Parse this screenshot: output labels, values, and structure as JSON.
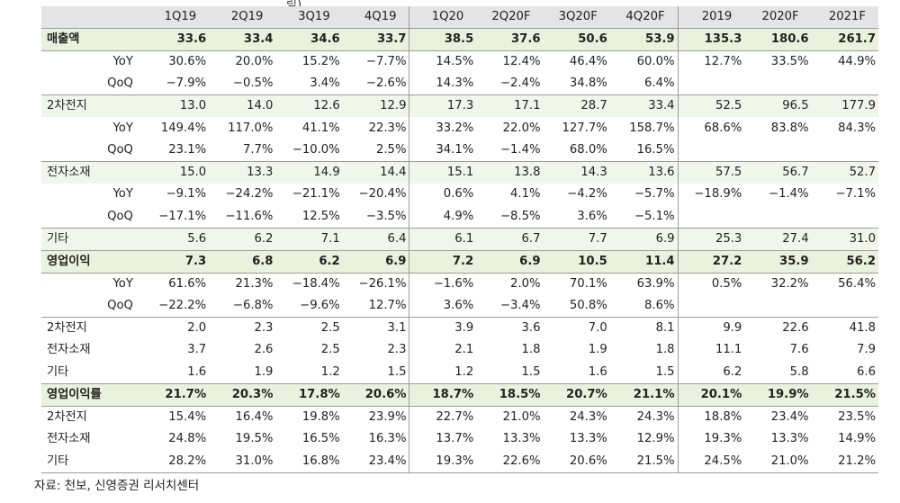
{
  "header": {
    "clipped_title": "림)",
    "columns": [
      "1Q19",
      "2Q19",
      "3Q19",
      "4Q19",
      "1Q20",
      "2Q20F",
      "3Q20F",
      "4Q20F",
      "2019",
      "2020F",
      "2021F"
    ]
  },
  "rows": [
    {
      "label": "매출액",
      "style": "major",
      "values": [
        "33.6",
        "33.4",
        "34.6",
        "33.7",
        "38.5",
        "37.6",
        "50.6",
        "53.9",
        "135.3",
        "180.6",
        "261.7"
      ]
    },
    {
      "label": "YoY",
      "style": "sub",
      "values": [
        "30.6%",
        "20.0%",
        "15.2%",
        "−7.7%",
        "14.5%",
        "12.4%",
        "46.4%",
        "60.0%",
        "12.7%",
        "33.5%",
        "44.9%"
      ]
    },
    {
      "label": "QoQ",
      "style": "sub",
      "values": [
        "−7.9%",
        "−0.5%",
        "3.4%",
        "−2.6%",
        "14.3%",
        "−2.4%",
        "34.8%",
        "6.4%",
        "",
        "",
        ""
      ]
    },
    {
      "label": "2차전지",
      "style": "shade",
      "values": [
        "13.0",
        "14.0",
        "12.6",
        "12.9",
        "17.3",
        "17.1",
        "28.7",
        "33.4",
        "52.5",
        "96.5",
        "177.9"
      ]
    },
    {
      "label": "YoY",
      "style": "sub",
      "values": [
        "149.4%",
        "117.0%",
        "41.1%",
        "22.3%",
        "33.2%",
        "22.0%",
        "127.7%",
        "158.7%",
        "68.6%",
        "83.8%",
        "84.3%"
      ]
    },
    {
      "label": "QoQ",
      "style": "sub",
      "values": [
        "23.1%",
        "7.7%",
        "−10.0%",
        "2.5%",
        "34.1%",
        "−1.4%",
        "68.0%",
        "16.5%",
        "",
        "",
        ""
      ]
    },
    {
      "label": "전자소재",
      "style": "shade",
      "values": [
        "15.0",
        "13.3",
        "14.9",
        "14.4",
        "15.1",
        "13.8",
        "14.3",
        "13.6",
        "57.5",
        "56.7",
        "52.7"
      ]
    },
    {
      "label": "YoY",
      "style": "sub",
      "values": [
        "−9.1%",
        "−24.2%",
        "−21.1%",
        "−20.4%",
        "0.6%",
        "4.1%",
        "−4.2%",
        "−5.7%",
        "−18.9%",
        "−1.4%",
        "−7.1%"
      ]
    },
    {
      "label": "QoQ",
      "style": "sub",
      "values": [
        "−17.1%",
        "−11.6%",
        "12.5%",
        "−3.5%",
        "4.9%",
        "−8.5%",
        "3.6%",
        "−5.1%",
        "",
        "",
        ""
      ]
    },
    {
      "label": "기타",
      "style": "shade",
      "values": [
        "5.6",
        "6.2",
        "7.1",
        "6.4",
        "6.1",
        "6.7",
        "7.7",
        "6.9",
        "25.3",
        "27.4",
        "31.0"
      ]
    },
    {
      "label": "영업이익",
      "style": "major",
      "values": [
        "7.3",
        "6.8",
        "6.2",
        "6.9",
        "7.2",
        "6.9",
        "10.5",
        "11.4",
        "27.2",
        "35.9",
        "56.2"
      ]
    },
    {
      "label": "YoY",
      "style": "sub",
      "values": [
        "61.6%",
        "21.3%",
        "−18.4%",
        "−26.1%",
        "−1.6%",
        "2.0%",
        "70.1%",
        "63.9%",
        "0.5%",
        "32.2%",
        "56.4%"
      ]
    },
    {
      "label": "QoQ",
      "style": "sub",
      "values": [
        "−22.2%",
        "−6.8%",
        "−9.6%",
        "12.7%",
        "3.6%",
        "−3.4%",
        "50.8%",
        "8.6%",
        "",
        "",
        ""
      ]
    },
    {
      "label": "2차전지",
      "style": "plain-top",
      "values": [
        "2.0",
        "2.3",
        "2.5",
        "3.1",
        "3.9",
        "3.6",
        "7.0",
        "8.1",
        "9.9",
        "22.6",
        "41.8"
      ]
    },
    {
      "label": "전자소재",
      "style": "plain",
      "values": [
        "3.7",
        "2.6",
        "2.5",
        "2.3",
        "2.1",
        "1.8",
        "1.9",
        "1.8",
        "11.1",
        "7.6",
        "7.9"
      ]
    },
    {
      "label": "기타",
      "style": "plain",
      "values": [
        "1.6",
        "1.9",
        "1.2",
        "1.5",
        "1.2",
        "1.5",
        "1.6",
        "1.5",
        "6.2",
        "5.8",
        "6.6"
      ]
    },
    {
      "label": "영업이익률",
      "style": "major",
      "values": [
        "21.7%",
        "20.3%",
        "17.8%",
        "20.6%",
        "18.7%",
        "18.5%",
        "20.7%",
        "21.1%",
        "20.1%",
        "19.9%",
        "21.5%"
      ]
    },
    {
      "label": "2차전지",
      "style": "plain",
      "values": [
        "15.4%",
        "16.4%",
        "19.8%",
        "23.9%",
        "22.7%",
        "21.0%",
        "24.3%",
        "24.3%",
        "18.8%",
        "23.4%",
        "23.5%"
      ]
    },
    {
      "label": "전자소재",
      "style": "plain",
      "values": [
        "24.8%",
        "19.5%",
        "16.5%",
        "16.3%",
        "13.7%",
        "13.3%",
        "13.3%",
        "12.9%",
        "19.3%",
        "13.3%",
        "14.9%"
      ]
    },
    {
      "label": "기타",
      "style": "plain-bottom",
      "values": [
        "28.2%",
        "31.0%",
        "16.8%",
        "23.4%",
        "19.3%",
        "22.6%",
        "20.6%",
        "21.5%",
        "24.5%",
        "21.0%",
        "21.2%"
      ]
    }
  ],
  "source": "자료: 천보, 신영증권 리서치센터"
}
